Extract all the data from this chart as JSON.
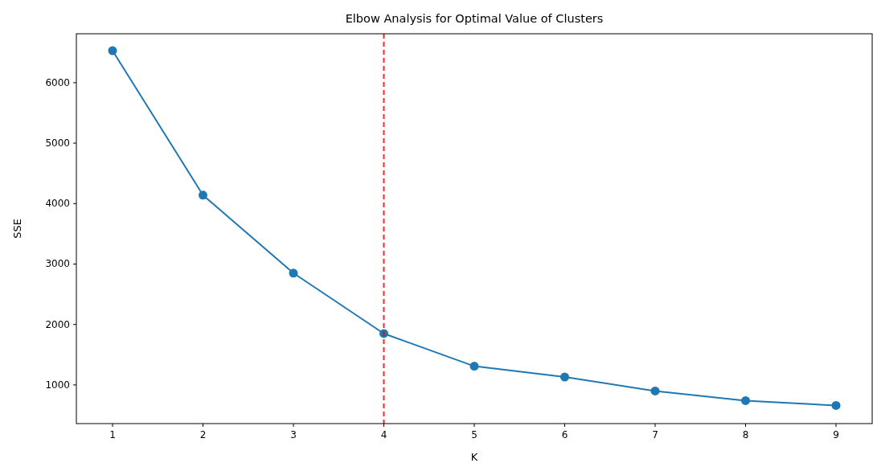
{
  "chart_data": {
    "type": "line",
    "title": "Elbow Analysis for Optimal Value of Clusters",
    "xlabel": "K",
    "ylabel": "SSE",
    "x": [
      1,
      2,
      3,
      4,
      5,
      6,
      7,
      8,
      9
    ],
    "series": [
      {
        "color": "#1f77b4",
        "values": [
          6530,
          4140,
          2850,
          1850,
          1310,
          1130,
          900,
          740,
          660
        ]
      }
    ],
    "xlim": [
      0.6,
      9.4
    ],
    "xticks": [
      1,
      2,
      3,
      4,
      5,
      6,
      7,
      8,
      9
    ],
    "ylim": [
      360,
      6810
    ],
    "yticks": [
      1000,
      2000,
      3000,
      4000,
      5000,
      6000
    ],
    "marker": "circle",
    "line_style": "solid",
    "grid": false,
    "ref_lines": [
      {
        "axis": "x",
        "value": 4,
        "color": "#ff0000",
        "line_style": "dashed"
      }
    ]
  }
}
